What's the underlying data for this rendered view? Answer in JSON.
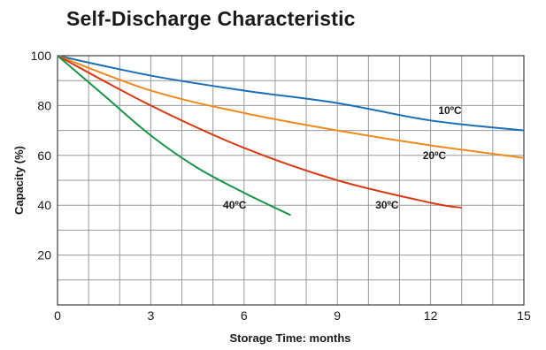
{
  "chart_data": {
    "type": "line",
    "title": "Self-Discharge Characteristic",
    "xlabel": "Storage Time: months",
    "ylabel": "Capacity (%)",
    "xlim": [
      0,
      15
    ],
    "ylim": [
      0,
      100
    ],
    "x_ticks": [
      "0",
      "3",
      "6",
      "9",
      "12",
      "15"
    ],
    "y_ticks": [
      "20",
      "40",
      "60",
      "80",
      "100"
    ],
    "grid": true,
    "series": [
      {
        "name": "10ºC",
        "color": "#1a6fb8",
        "x": [
          0,
          3,
          6,
          9,
          12,
          15
        ],
        "y": [
          100,
          92,
          86,
          81,
          74,
          70
        ]
      },
      {
        "name": "20ºC",
        "color": "#f08a1c",
        "x": [
          0,
          3,
          6,
          9,
          12,
          15
        ],
        "y": [
          100,
          86,
          77,
          70,
          64,
          59
        ]
      },
      {
        "name": "30ºC",
        "color": "#d93a12",
        "x": [
          0,
          3,
          6,
          9,
          12,
          13
        ],
        "y": [
          100,
          80,
          63,
          50,
          41,
          39
        ]
      },
      {
        "name": "40ºC",
        "color": "#189448",
        "x": [
          0,
          1.5,
          3,
          4.5,
          6,
          7.5
        ],
        "y": [
          100,
          84,
          68,
          55,
          45,
          36
        ]
      }
    ]
  }
}
